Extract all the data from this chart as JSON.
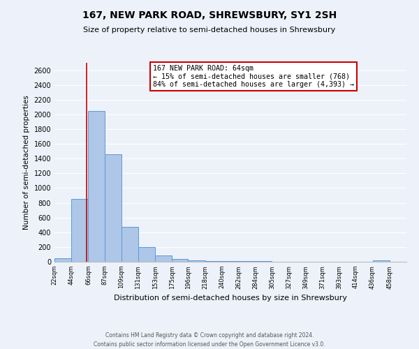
{
  "title": "167, NEW PARK ROAD, SHREWSBURY, SY1 2SH",
  "subtitle": "Size of property relative to semi-detached houses in Shrewsbury",
  "xlabel": "Distribution of semi-detached houses by size in Shrewsbury",
  "ylabel": "Number of semi-detached properties",
  "footer_line1": "Contains HM Land Registry data © Crown copyright and database right 2024.",
  "footer_line2": "Contains public sector information licensed under the Open Government Licence v3.0.",
  "annotation_title": "167 NEW PARK ROAD: 64sqm",
  "annotation_line1": "← 15% of semi-detached houses are smaller (768)",
  "annotation_line2": "84% of semi-detached houses are larger (4,393) →",
  "property_size": 64,
  "bar_left_edges": [
    22,
    44,
    66,
    87,
    109,
    131,
    153,
    175,
    196,
    218,
    240,
    262,
    284,
    305,
    327,
    349,
    371,
    393,
    414,
    436
  ],
  "bar_widths": [
    22,
    22,
    21,
    22,
    22,
    22,
    22,
    21,
    22,
    22,
    22,
    22,
    21,
    22,
    22,
    22,
    22,
    21,
    22,
    22
  ],
  "bar_heights": [
    50,
    855,
    2050,
    1460,
    470,
    200,
    90,
    40,
    20,
    5,
    5,
    5,
    5,
    0,
    0,
    0,
    0,
    0,
    0,
    15
  ],
  "bar_color": "#aec6e8",
  "bar_edge_color": "#5b9bd5",
  "marker_x": 64,
  "marker_color": "#cc0000",
  "ylim": [
    0,
    2700
  ],
  "yticks": [
    0,
    200,
    400,
    600,
    800,
    1000,
    1200,
    1400,
    1600,
    1800,
    2000,
    2200,
    2400,
    2600
  ],
  "xtick_labels": [
    "22sqm",
    "44sqm",
    "66sqm",
    "87sqm",
    "109sqm",
    "131sqm",
    "153sqm",
    "175sqm",
    "196sqm",
    "218sqm",
    "240sqm",
    "262sqm",
    "284sqm",
    "305sqm",
    "327sqm",
    "349sqm",
    "371sqm",
    "393sqm",
    "414sqm",
    "436sqm",
    "458sqm"
  ],
  "xtick_positions": [
    22,
    44,
    66,
    87,
    109,
    131,
    153,
    175,
    196,
    218,
    240,
    262,
    284,
    305,
    327,
    349,
    371,
    393,
    414,
    436,
    458
  ],
  "bg_color": "#edf2fa",
  "plot_bg_color": "#edf2fa",
  "grid_color": "#ffffff",
  "annotation_box_color": "#ffffff",
  "annotation_box_edge": "#cc0000",
  "xlim_left": 22,
  "xlim_right": 480
}
